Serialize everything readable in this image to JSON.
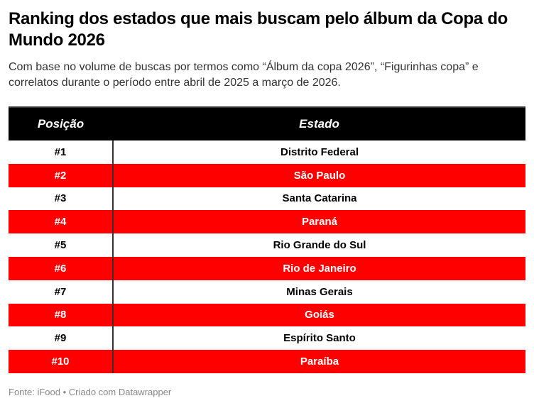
{
  "header": {
    "title": "Ranking dos estados que mais buscam pelo álbum da Copa do Mundo 2026",
    "subtitle": "Com base no volume de buscas por termos como “Álbum da copa 2026”, “Figurinhas copa” e correlatos durante o período entre abril de 2025 a março de 2026."
  },
  "table": {
    "columns": [
      "Posição",
      "Estado"
    ],
    "rows": [
      [
        "#1",
        "Distrito Federal"
      ],
      [
        "#2",
        "São Paulo"
      ],
      [
        "#3",
        "Santa Catarina"
      ],
      [
        "#4",
        "Paraná"
      ],
      [
        "#5",
        "Rio Grande do Sul"
      ],
      [
        "#6",
        "Rio de Janeiro"
      ],
      [
        "#7",
        "Minas Gerais"
      ],
      [
        "#8",
        "Goiás"
      ],
      [
        "#9",
        "Espírito Santo"
      ],
      [
        "#10",
        "Paraíba"
      ]
    ]
  },
  "footer": {
    "source": "Fonte: iFood • Criado com Datawrapper"
  }
}
